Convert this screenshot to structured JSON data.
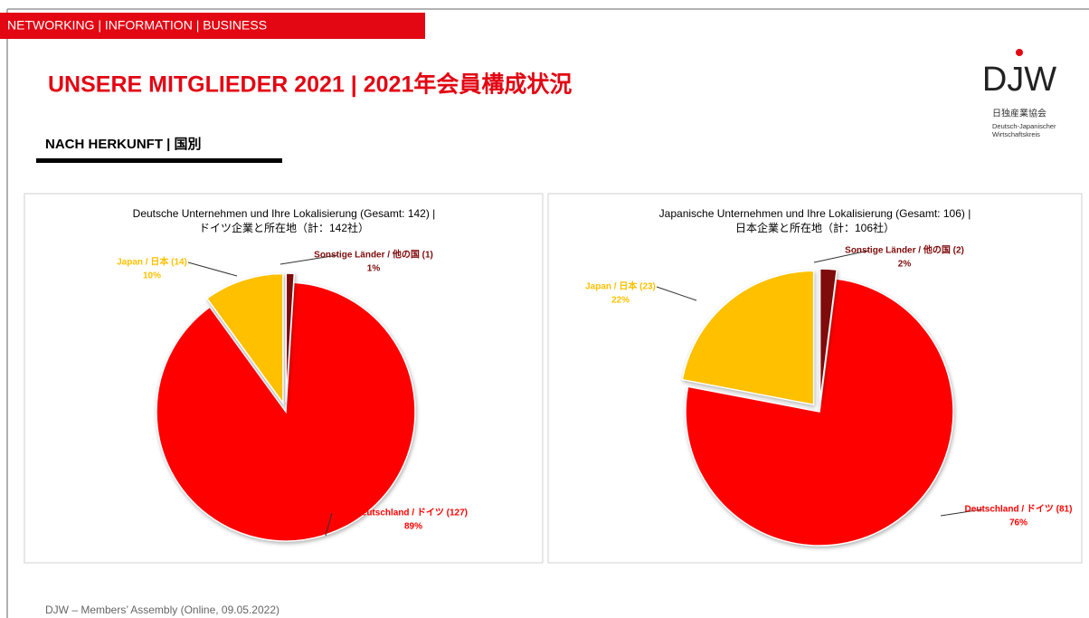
{
  "header": {
    "banner": "NETWORKING | INFORMATION | BUSINESS",
    "title": "UNSERE MITGLIEDER 2021 | 2021年会員構成状況",
    "subtitle": "NACH HERKUNFT | 国別"
  },
  "logo": {
    "name": "DJW",
    "lines": [
      "日独産業協会",
      "Deutsch-Japanischer",
      "Wirtschaftskreis"
    ]
  },
  "footer": "DJW – Members’ Assembly (Online, 09.05.2022)",
  "chart_data": [
    {
      "type": "pie",
      "title": [
        "Deutsche Unternehmen und Ihre Lokalisierung (Gesamt: 142) |",
        "ドイツ企業と所在地（計：142社）"
      ],
      "categories": [
        "Deutschland / ドイツ (127)",
        "Japan / 日本 (14)",
        "Sonstige Länder / 他の国 (1)"
      ],
      "values": [
        89,
        10,
        1
      ],
      "value_labels": [
        "89%",
        "10%",
        "1%"
      ],
      "colors": [
        "#ff0000",
        "#ffc000",
        "#7f0b0b"
      ]
    },
    {
      "type": "pie",
      "title": [
        "Japanische Unternehmen und Ihre Lokalisierung (Gesamt: 106) |",
        "日本企業と所在地（計：106社）"
      ],
      "categories": [
        "Deutschland / ドイツ (81)",
        "Japan / 日本 (23)",
        "Sonstige Länder / 他の国 (2)"
      ],
      "values": [
        76,
        22,
        2
      ],
      "value_labels": [
        "76%",
        "22%",
        "2%"
      ],
      "colors": [
        "#ff0000",
        "#ffc000",
        "#7f0b0b"
      ]
    }
  ]
}
